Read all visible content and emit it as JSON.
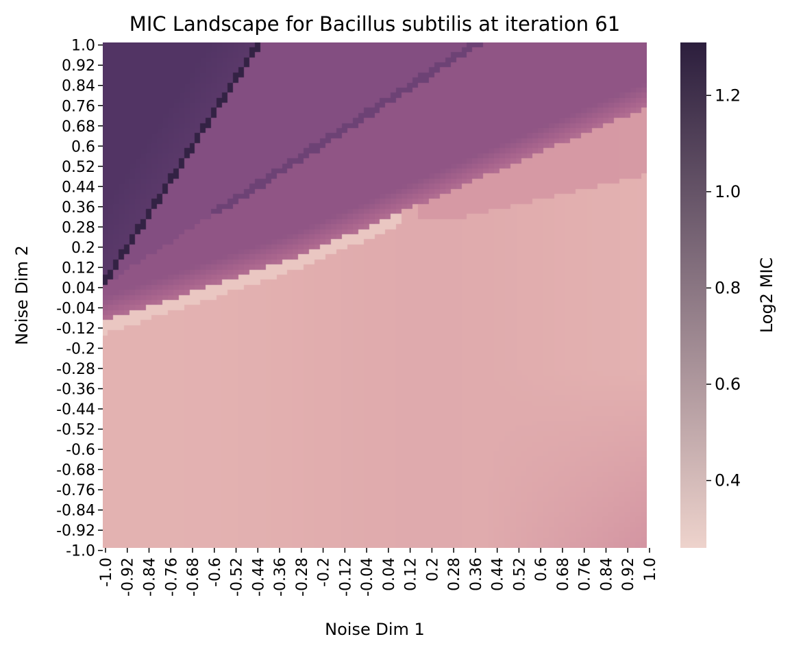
{
  "chart_data": {
    "type": "heatmap",
    "title": "MIC Landscape for Bacillus subtilis at iteration 61",
    "xlabel": "Noise Dim 1",
    "ylabel": "Noise Dim 2",
    "xlim": [
      -1.0,
      1.0
    ],
    "ylim": [
      -1.0,
      1.0
    ],
    "x_tick_labels": [
      "-1.0",
      "-0.92",
      "-0.84",
      "-0.76",
      "-0.68",
      "-0.6",
      "-0.52",
      "-0.44",
      "-0.36",
      "-0.28",
      "-0.2",
      "-0.12",
      "-0.04",
      "0.04",
      "0.12",
      "0.2",
      "0.28",
      "0.36",
      "0.44",
      "0.52",
      "0.6",
      "0.68",
      "0.76",
      "0.84",
      "0.92",
      "1.0"
    ],
    "y_tick_labels": [
      "1.0",
      "0.92",
      "0.84",
      "0.76",
      "0.68",
      "0.6",
      "0.52",
      "0.44",
      "0.36",
      "0.28",
      "0.2",
      "0.12",
      "0.04",
      "-0.04",
      "-0.12",
      "-0.2",
      "-0.28",
      "-0.36",
      "-0.44",
      "-0.52",
      "-0.6",
      "-0.68",
      "-0.76",
      "-0.84",
      "-0.92",
      "-1.0"
    ],
    "colorbar": {
      "label": "Log2 MIC",
      "range": [
        0.26,
        1.31
      ],
      "tick_values": [
        0.4,
        0.6,
        0.8,
        1.0,
        1.2
      ],
      "tick_labels": [
        "0.4",
        "0.6",
        "0.8",
        "1.0",
        "1.2"
      ],
      "colormap_stops": [
        "#eed3cc",
        "#e2afaf",
        "#cf8d9e",
        "#a8648d",
        "#7b497e",
        "#533565",
        "#2c1e3d"
      ]
    },
    "grid": false,
    "legend": "colorbar-right",
    "regions_approx": [
      {
        "region": "upper-left wedge, x < -0.85 + 0.55*(y-0.05) approx",
        "log2_mic": 1.1
      },
      {
        "region": "middle band between the two diagonal ridges",
        "log2_mic": 0.93
      },
      {
        "region": "bump near x=0.45, y=0.8",
        "log2_mic": 0.72
      },
      {
        "region": "upper-right plateau",
        "log2_mic": 0.55
      },
      {
        "region": "lower half background",
        "log2_mic": 0.42
      },
      {
        "region": "bottom-right corner",
        "log2_mic": 0.52
      },
      {
        "region": "diagonal ridges (peak)",
        "log2_mic": 1.28
      }
    ]
  }
}
